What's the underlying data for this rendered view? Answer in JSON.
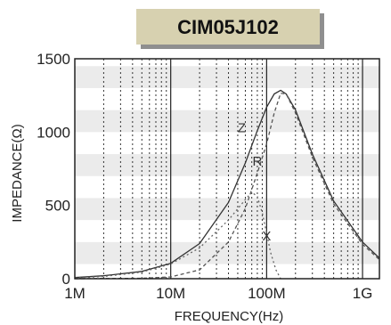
{
  "chart_data": {
    "type": "line",
    "title": "CIM05J102",
    "xlabel": "FREQUENCY(Hz)",
    "ylabel": "IMPEDANCE(Ω)",
    "x_scale": "log",
    "xlim": [
      1000000,
      1500000000
    ],
    "ylim": [
      0,
      1500
    ],
    "x_ticks": [
      {
        "value": 1000000,
        "label": "1M"
      },
      {
        "value": 10000000,
        "label": "10M"
      },
      {
        "value": 100000000,
        "label": "100M"
      },
      {
        "value": 1000000000,
        "label": "1G"
      }
    ],
    "y_ticks": [
      {
        "value": 0,
        "label": "0"
      },
      {
        "value": 500,
        "label": "500"
      },
      {
        "value": 1000,
        "label": "1000"
      },
      {
        "value": 1500,
        "label": "1500"
      }
    ],
    "grid": true,
    "series": [
      {
        "name": "Z",
        "style": "solid",
        "x": [
          1000000,
          2000000,
          5000000,
          10000000,
          20000000,
          40000000,
          60000000,
          80000000,
          100000000,
          120000000,
          140000000,
          160000000,
          200000000,
          300000000,
          500000000,
          1000000000,
          1500000000
        ],
        "y": [
          8,
          20,
          50,
          105,
          240,
          520,
          790,
          1010,
          1170,
          1260,
          1285,
          1260,
          1150,
          850,
          530,
          250,
          140
        ]
      },
      {
        "name": "R",
        "style": "dashed",
        "x": [
          1000000,
          5000000,
          10000000,
          20000000,
          40000000,
          60000000,
          80000000,
          100000000,
          120000000,
          140000000,
          160000000,
          200000000,
          300000000,
          500000000,
          1000000000,
          1500000000
        ],
        "y": [
          0,
          3,
          12,
          60,
          250,
          480,
          720,
          920,
          1130,
          1265,
          1260,
          1130,
          830,
          510,
          235,
          130
        ]
      },
      {
        "name": "X",
        "style": "dotted",
        "x": [
          1000000,
          2000000,
          5000000,
          10000000,
          20000000,
          40000000,
          60000000,
          70000000,
          80000000,
          90000000,
          100000000,
          110000000,
          125000000,
          140000000
        ],
        "y": [
          5,
          15,
          45,
          100,
          210,
          400,
          540,
          590,
          560,
          450,
          310,
          180,
          60,
          0
        ]
      }
    ],
    "series_labels": [
      {
        "series": "Z",
        "x": 55000000,
        "y": 1000
      },
      {
        "series": "R",
        "x": 80000000,
        "y": 770
      },
      {
        "series": "X",
        "x": 100000000,
        "y": 260
      }
    ],
    "band_stripes": [
      [
        100,
        250
      ],
      [
        400,
        550
      ],
      [
        700,
        850
      ],
      [
        1000,
        1150
      ],
      [
        1300,
        1450
      ]
    ]
  }
}
